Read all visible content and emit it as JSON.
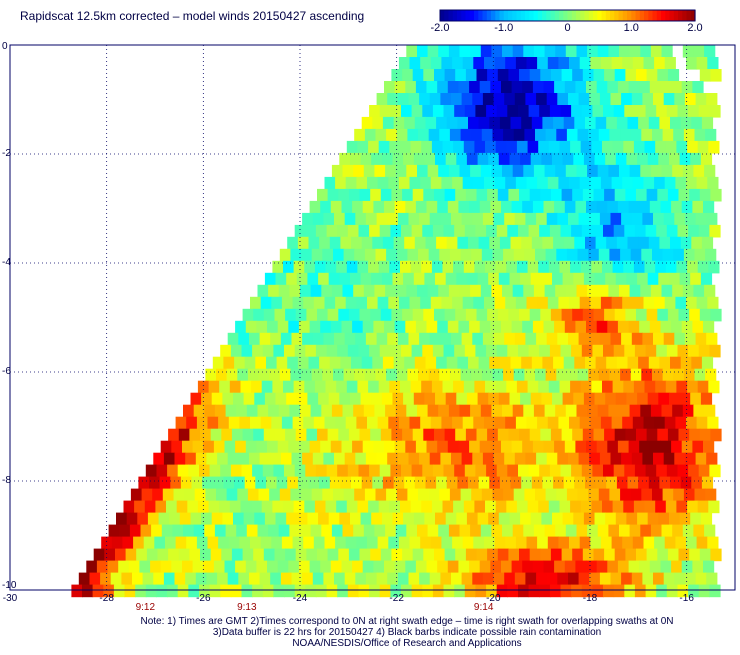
{
  "title": "Rapidscat 12.5km corrected – model winds 20150427 ascending",
  "colorbar": {
    "labels": [
      "-2.0",
      "-1.0",
      "0",
      "1.0",
      "2.0"
    ],
    "range": [
      -2.0,
      2.0
    ],
    "colors": [
      "#00008b",
      "#0000ff",
      "#00bfff",
      "#00ffff",
      "#7fff7f",
      "#ffff00",
      "#ff8c00",
      "#ff0000",
      "#8b0000"
    ]
  },
  "axes": {
    "x_ticks": [
      "-30",
      "-28",
      "-26",
      "-24",
      "-22",
      "-20",
      "-18",
      "-16"
    ],
    "y_ticks": [
      "0",
      "-2",
      "-4",
      "-6",
      "-8",
      "-10"
    ],
    "x_range": [
      -30,
      -15
    ],
    "y_range": [
      -10,
      0
    ],
    "grid": true
  },
  "swath_times": [
    {
      "label": "9:12",
      "lon": -27.2
    },
    {
      "label": "9:13",
      "lon": -25.1
    },
    {
      "label": "9:14",
      "lon": -20.2
    }
  ],
  "notes": {
    "line1": "Note: 1) Times are GMT 2)Times correspond to 0N at right swath edge – time is right swath for overlapping swaths at 0N",
    "line2": "3)Data buffer is 22 hrs for 20150427 4) Black barbs indicate possible rain contamination",
    "line3": "NOAA/NESDIS/Office of Research and Applications"
  },
  "swath": {
    "lat_top": 0,
    "lat_bottom": -10,
    "left_edge_top_lon": -21.8,
    "left_edge_bottom_lon": -28.8,
    "right_edge_lon": -15.5,
    "cell_deg": 0.22
  }
}
